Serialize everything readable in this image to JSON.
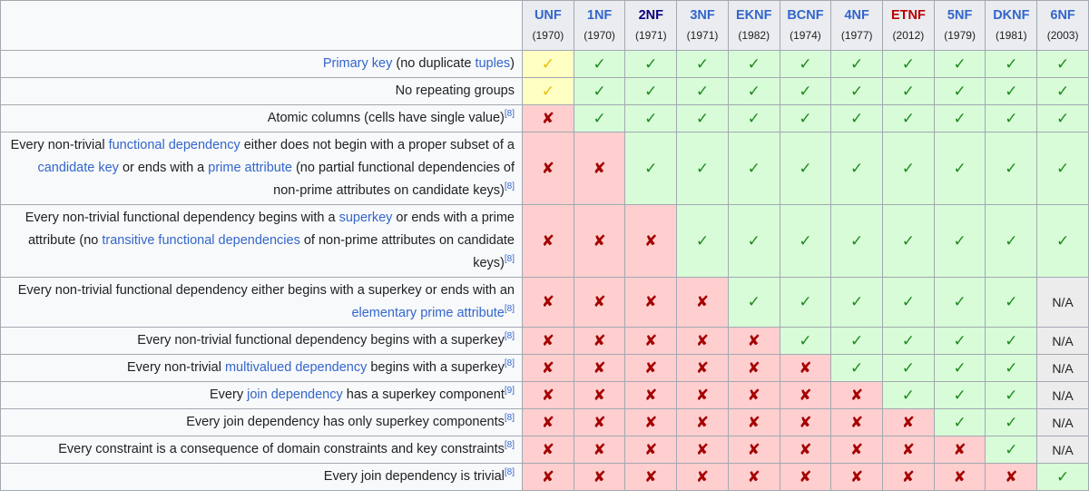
{
  "table": {
    "columns": [
      {
        "name": "UNF",
        "year": "(1970)",
        "color": "#3366cc"
      },
      {
        "name": "1NF",
        "year": "(1970)",
        "color": "#3366cc"
      },
      {
        "name": "2NF",
        "year": "(1971)",
        "color": "#0b0080"
      },
      {
        "name": "3NF",
        "year": "(1971)",
        "color": "#3366cc"
      },
      {
        "name": "EKNF",
        "year": "(1982)",
        "color": "#3366cc"
      },
      {
        "name": "BCNF",
        "year": "(1974)",
        "color": "#3366cc"
      },
      {
        "name": "4NF",
        "year": "(1977)",
        "color": "#3366cc"
      },
      {
        "name": "ETNF",
        "year": "(2012)",
        "color": "#ba0000"
      },
      {
        "name": "5NF",
        "year": "(1979)",
        "color": "#3366cc"
      },
      {
        "name": "DKNF",
        "year": "(1981)",
        "color": "#3366cc"
      },
      {
        "name": "6NF",
        "year": "(2003)",
        "color": "#3366cc"
      }
    ],
    "cell_styles": {
      "✓": {
        "background": "#d8fcd8",
        "color": "#1f8a1f"
      },
      "✘": {
        "background": "#ffcfcf",
        "color": "#a50000"
      },
      "N/A": {
        "background": "#ececec",
        "color": "#202122"
      }
    },
    "rows": [
      {
        "label": [
          {
            "text": "Primary key",
            "link": true
          },
          {
            "text": " (no duplicate "
          },
          {
            "text": "tuples",
            "link": true
          },
          {
            "text": ")"
          }
        ],
        "cells": [
          {
            "text": "✓",
            "background": "#ffffc4",
            "color": "#e8c000"
          },
          "✓",
          "✓",
          "✓",
          "✓",
          "✓",
          "✓",
          "✓",
          "✓",
          "✓",
          "✓"
        ]
      },
      {
        "label": [
          {
            "text": "No repeating groups"
          }
        ],
        "cells": [
          {
            "text": "✓",
            "background": "#ffffc4",
            "color": "#e8c000"
          },
          "✓",
          "✓",
          "✓",
          "✓",
          "✓",
          "✓",
          "✓",
          "✓",
          "✓",
          "✓"
        ]
      },
      {
        "label": [
          {
            "text": "Atomic columns (cells have single value)"
          }
        ],
        "ref": "[8]",
        "cells": [
          "✘",
          "✓",
          "✓",
          "✓",
          "✓",
          "✓",
          "✓",
          "✓",
          "✓",
          "✓",
          "✓"
        ]
      },
      {
        "label": [
          {
            "text": "Every non-trivial "
          },
          {
            "text": "functional dependency",
            "link": true
          },
          {
            "text": " either does not begin with a proper subset of a "
          },
          {
            "text": "candidate key",
            "link": true
          },
          {
            "text": " or ends with a "
          },
          {
            "text": "prime attribute",
            "link": true
          },
          {
            "text": " (no partial functional dependencies of non-prime attributes on candidate keys)"
          }
        ],
        "ref": "[8]",
        "cells": [
          "✘",
          "✘",
          "✓",
          "✓",
          "✓",
          "✓",
          "✓",
          "✓",
          "✓",
          "✓",
          "✓"
        ]
      },
      {
        "label": [
          {
            "text": "Every non-trivial functional dependency begins with a "
          },
          {
            "text": "superkey",
            "link": true
          },
          {
            "text": " or ends with a prime attribute (no "
          },
          {
            "text": "transitive functional dependencies",
            "link": true
          },
          {
            "text": " of non-prime attributes on candidate keys)"
          }
        ],
        "ref": "[8]",
        "cells": [
          "✘",
          "✘",
          "✘",
          "✓",
          "✓",
          "✓",
          "✓",
          "✓",
          "✓",
          "✓",
          "✓"
        ]
      },
      {
        "label": [
          {
            "text": "Every non-trivial functional dependency either begins with a superkey or ends with an "
          },
          {
            "text": "elementary prime attribute",
            "link": true
          }
        ],
        "ref": "[8]",
        "cells": [
          "✘",
          "✘",
          "✘",
          "✘",
          "✓",
          "✓",
          "✓",
          "✓",
          "✓",
          "✓",
          "N/A"
        ]
      },
      {
        "label": [
          {
            "text": "Every non-trivial functional dependency begins with a superkey"
          }
        ],
        "ref": "[8]",
        "cells": [
          "✘",
          "✘",
          "✘",
          "✘",
          "✘",
          "✓",
          "✓",
          "✓",
          "✓",
          "✓",
          "N/A"
        ]
      },
      {
        "label": [
          {
            "text": "Every non-trivial "
          },
          {
            "text": "multivalued dependency",
            "link": true
          },
          {
            "text": " begins with a superkey"
          }
        ],
        "ref": "[8]",
        "cells": [
          "✘",
          "✘",
          "✘",
          "✘",
          "✘",
          "✘",
          "✓",
          "✓",
          "✓",
          "✓",
          "N/A"
        ]
      },
      {
        "label": [
          {
            "text": "Every "
          },
          {
            "text": "join dependency",
            "link": true
          },
          {
            "text": " has a superkey component"
          }
        ],
        "ref": "[9]",
        "cells": [
          "✘",
          "✘",
          "✘",
          "✘",
          "✘",
          "✘",
          "✘",
          "✓",
          "✓",
          "✓",
          "N/A"
        ]
      },
      {
        "label": [
          {
            "text": "Every join dependency has only superkey components"
          }
        ],
        "ref": "[8]",
        "cells": [
          "✘",
          "✘",
          "✘",
          "✘",
          "✘",
          "✘",
          "✘",
          "✘",
          "✓",
          "✓",
          "N/A"
        ]
      },
      {
        "label": [
          {
            "text": "Every constraint is a consequence of domain constraints and key constraints"
          }
        ],
        "ref": "[8]",
        "cells": [
          "✘",
          "✘",
          "✘",
          "✘",
          "✘",
          "✘",
          "✘",
          "✘",
          "✘",
          "✓",
          "N/A"
        ]
      },
      {
        "label": [
          {
            "text": "Every join dependency is trivial"
          }
        ],
        "ref": "[8]",
        "cells": [
          "✘",
          "✘",
          "✘",
          "✘",
          "✘",
          "✘",
          "✘",
          "✘",
          "✘",
          "✘",
          "✓"
        ]
      }
    ]
  }
}
